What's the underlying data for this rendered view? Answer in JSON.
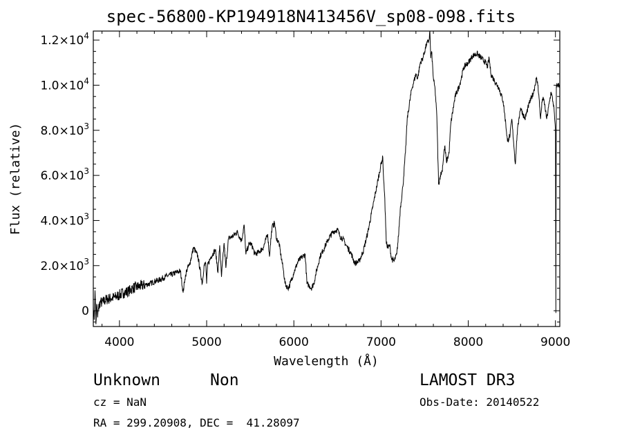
{
  "chart_data": {
    "type": "line",
    "title": "spec-56800-KP194918N413456V_sp08-098.fits",
    "xlabel": "Wavelength (Å)",
    "ylabel": "Flux (relative)",
    "xlim": [
      3700,
      9050
    ],
    "ylim": [
      -700,
      12400
    ],
    "x_ticks": [
      4000,
      5000,
      6000,
      7000,
      8000,
      9000
    ],
    "x_tick_labels": [
      "4000",
      "5000",
      "6000",
      "7000",
      "8000",
      "9000"
    ],
    "y_ticks": [
      {
        "value": 0,
        "mantissa": "0",
        "exp": ""
      },
      {
        "value": 2000,
        "mantissa": "2.0×10",
        "exp": "3"
      },
      {
        "value": 4000,
        "mantissa": "4.0×10",
        "exp": "3"
      },
      {
        "value": 6000,
        "mantissa": "6.0×10",
        "exp": "3"
      },
      {
        "value": 8000,
        "mantissa": "8.0×10",
        "exp": "3"
      },
      {
        "value": 10000,
        "mantissa": "1.0×10",
        "exp": "4"
      },
      {
        "value": 12000,
        "mantissa": "1.2×10",
        "exp": "4"
      }
    ],
    "series": [
      {
        "name": "flux",
        "x": [
          3700,
          3710,
          3720,
          3730,
          3740,
          3750,
          3760,
          3780,
          3800,
          3850,
          3900,
          3950,
          4000,
          4050,
          4100,
          4150,
          4200,
          4250,
          4300,
          4350,
          4400,
          4450,
          4500,
          4550,
          4600,
          4650,
          4700,
          4730,
          4750,
          4760,
          4780,
          4800,
          4850,
          4900,
          4950,
          4970,
          4990,
          5000,
          5010,
          5050,
          5100,
          5130,
          5150,
          5170,
          5200,
          5220,
          5250,
          5300,
          5350,
          5400,
          5430,
          5450,
          5480,
          5500,
          5530,
          5550,
          5600,
          5650,
          5700,
          5720,
          5730,
          5750,
          5780,
          5800,
          5830,
          5850,
          5880,
          5900,
          5930,
          5950,
          6000,
          6050,
          6100,
          6130,
          6150,
          6180,
          6200,
          6230,
          6250,
          6300,
          6350,
          6400,
          6450,
          6500,
          6530,
          6560,
          6600,
          6650,
          6700,
          6750,
          6800,
          6850,
          6900,
          6950,
          7000,
          7020,
          7030,
          7040,
          7050,
          7060,
          7080,
          7100,
          7120,
          7150,
          7180,
          7200,
          7220,
          7250,
          7280,
          7300,
          7350,
          7400,
          7420,
          7450,
          7480,
          7500,
          7520,
          7550,
          7560,
          7570,
          7580,
          7600,
          7620,
          7640,
          7660,
          7680,
          7700,
          7730,
          7750,
          7780,
          7800,
          7850,
          7900,
          7950,
          8000,
          8050,
          8100,
          8150,
          8200,
          8220,
          8240,
          8260,
          8300,
          8350,
          8400,
          8430,
          8450,
          8480,
          8500,
          8520,
          8540,
          8560,
          8580,
          8600,
          8650,
          8700,
          8750,
          8780,
          8800,
          8830,
          8850,
          8870,
          8900,
          8950,
          8980,
          9000,
          9005,
          9010,
          9050
        ],
        "y": [
          200,
          -400,
          900,
          -600,
          300,
          -300,
          100,
          400,
          350,
          500,
          550,
          600,
          700,
          800,
          850,
          1000,
          1050,
          1100,
          1150,
          1200,
          1300,
          1350,
          1450,
          1550,
          1600,
          1700,
          1750,
          800,
          1400,
          1600,
          1900,
          2000,
          2800,
          2400,
          1200,
          2000,
          2100,
          1200,
          2000,
          2400,
          2700,
          1700,
          2900,
          1500,
          3000,
          1900,
          3200,
          3300,
          3500,
          3100,
          3800,
          2500,
          2900,
          3000,
          2800,
          2500,
          2600,
          2800,
          3400,
          2400,
          2900,
          3700,
          3900,
          3200,
          3000,
          2500,
          1800,
          1200,
          1000,
          1100,
          1700,
          2200,
          2400,
          2500,
          1200,
          1100,
          1000,
          1200,
          1600,
          2400,
          2800,
          3200,
          3500,
          3600,
          3300,
          3200,
          2900,
          2600,
          2100,
          2200,
          2700,
          3500,
          4500,
          5500,
          6500,
          6800,
          5800,
          5200,
          4200,
          3000,
          2800,
          2900,
          2300,
          2200,
          2500,
          3300,
          4500,
          5500,
          7000,
          8500,
          9800,
          10500,
          10300,
          11000,
          11200,
          11500,
          11800,
          12000,
          12400,
          11200,
          11500,
          10300,
          9800,
          8600,
          5600,
          6000,
          6200,
          7300,
          6600,
          7000,
          8300,
          9500,
          10000,
          10800,
          11000,
          11300,
          11400,
          11200,
          11000,
          10800,
          11200,
          10500,
          10200,
          9900,
          9300,
          8300,
          7500,
          7800,
          8500,
          7500,
          6500,
          7800,
          8500,
          9000,
          8500,
          9200,
          9700,
          10300,
          10000,
          8500,
          9400,
          9300,
          8500,
          9700,
          9100,
          8000,
          -100,
          10000,
          10000
        ]
      }
    ]
  },
  "info": {
    "class_label": "Unknown",
    "subclass_label": "Non",
    "survey": "LAMOST DR3",
    "cz": "cz = NaN",
    "obs_date": "Obs-Date: 20140522",
    "coords": "RA = 299.20908, DEC =  41.28097"
  }
}
